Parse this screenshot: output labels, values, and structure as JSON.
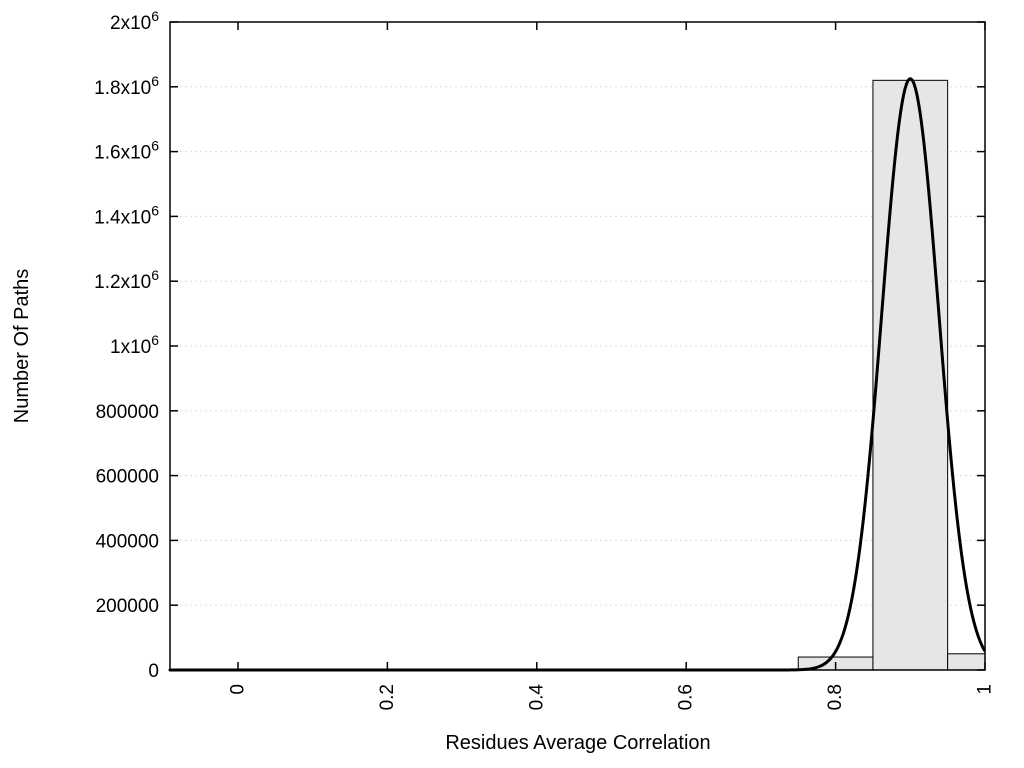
{
  "chart_data": {
    "type": "bar",
    "subtype": "histogram-with-fit-curve",
    "title": "",
    "xlabel": "Residues Average Correlation",
    "ylabel": "Number Of Paths",
    "xlim": [
      -0.091,
      1.0
    ],
    "ylim": [
      0,
      2000000
    ],
    "x_ticks": [
      0,
      0.2,
      0.4,
      0.6,
      0.8,
      1
    ],
    "x_tick_labels": [
      "0",
      "0.2",
      "0.4",
      "0.6",
      "0.8",
      "1"
    ],
    "y_ticks": [
      0,
      200000,
      400000,
      600000,
      800000,
      1000000,
      1200000,
      1400000,
      1600000,
      1800000,
      2000000
    ],
    "y_tick_labels": [
      "0",
      "200000",
      "400000",
      "600000",
      "800000",
      "1x10^6",
      "1.2x10^6",
      "1.4x10^6",
      "1.6x10^6",
      "1.8x10^6",
      "2x10^6"
    ],
    "grid": "horizontal-light",
    "legend": "none",
    "bars": [
      {
        "x0": 0.75,
        "x1": 0.85,
        "value": 40000
      },
      {
        "x0": 0.85,
        "x1": 0.95,
        "value": 1820000
      },
      {
        "x0": 0.95,
        "x1": 1.0,
        "value": 50000
      }
    ],
    "bar_fill": "#e6e6e6",
    "bar_stroke": "#000000",
    "curve": {
      "type": "gaussian_fit",
      "amplitude": 1825000,
      "mean": 0.9,
      "sigma": 0.038,
      "color": "#000000",
      "stroke_width": 3
    },
    "colors": {
      "axis": "#000000",
      "grid": "#dddddd",
      "background": "#ffffff"
    }
  }
}
